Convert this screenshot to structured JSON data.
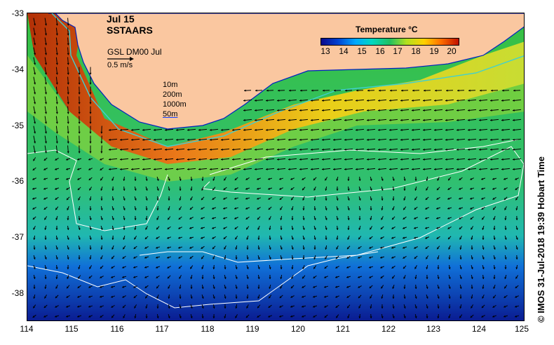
{
  "title": {
    "date": "Jul 15",
    "product": "SSTAARS"
  },
  "current_scale": {
    "label": "GSL DM00 Jul",
    "speed": "0.5 m/s"
  },
  "depth_legend": [
    "10m",
    "200m",
    "1000m",
    "50m"
  ],
  "colorbar": {
    "title": "Temperature °C",
    "ticks": [
      "13",
      "14",
      "15",
      "16",
      "17",
      "18",
      "19",
      "20"
    ],
    "range": [
      13,
      20.5
    ]
  },
  "x_axis": {
    "ticks": [
      "114",
      "115",
      "116",
      "117",
      "118",
      "119",
      "120",
      "121",
      "122",
      "123",
      "124",
      "125"
    ]
  },
  "y_axis": {
    "ticks": [
      "-33",
      "-34",
      "-35",
      "-36",
      "-37",
      "-38"
    ]
  },
  "credit": "©  IMOS 31-Jul-2018 19:39 Hobart Time",
  "colors": {
    "land": "#fac7a0",
    "arrows": "#000000",
    "isotherm": "#ffffff",
    "coast": "#0020c0"
  }
}
